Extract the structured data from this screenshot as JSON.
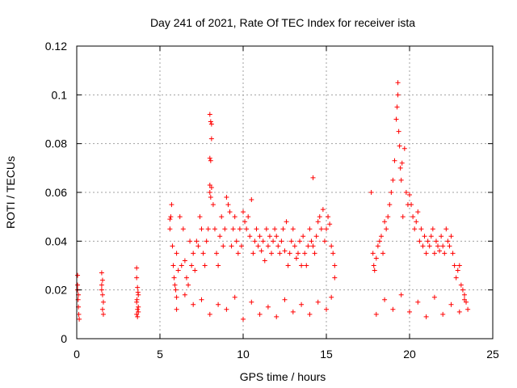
{
  "chart_data": {
    "type": "scatter",
    "title": "Day 241 of 2021, Rate Of TEC Index for receiver ista",
    "xlabel": "GPS time / hours",
    "ylabel": "ROTI / TECUs",
    "xlim": [
      0,
      25
    ],
    "ylim": [
      0,
      0.12
    ],
    "xticks": [
      0,
      5,
      10,
      15,
      20,
      25
    ],
    "xtick_labels": [
      "0",
      "5",
      "10",
      "15",
      "20",
      "25"
    ],
    "yticks": [
      0,
      0.02,
      0.04,
      0.06,
      0.08,
      0.1,
      0.12
    ],
    "ytick_labels": [
      "0",
      "0.02",
      "0.04",
      "0.06",
      "0.08",
      "0.1",
      "0.12"
    ],
    "grid": true,
    "marker": "+",
    "color": "#ff0000",
    "series": [
      {
        "name": "ROTI",
        "x": [
          0.05,
          0.05,
          0.08,
          0.1,
          0.12,
          0.15,
          0.1,
          0.05,
          1.5,
          1.5,
          1.55,
          1.6,
          1.55,
          1.6,
          1.5,
          1.55,
          3.6,
          3.6,
          3.65,
          3.7,
          3.6,
          3.65,
          3.7,
          3.6,
          3.65,
          3.7,
          3.62,
          3.68,
          5.6,
          5.6,
          5.65,
          5.7,
          5.75,
          5.8,
          5.85,
          5.9,
          5.95,
          6.0,
          6.0,
          6.1,
          6.2,
          6.3,
          6.4,
          6.5,
          6.6,
          6.7,
          6.8,
          6.9,
          7.0,
          7.1,
          7.2,
          7.3,
          7.4,
          7.5,
          7.6,
          7.7,
          7.8,
          7.9,
          8.0,
          8.0,
          8.05,
          8.1,
          8.1,
          8.05,
          8.0,
          8.1,
          8.0,
          8.05,
          8.2,
          8.3,
          8.4,
          8.5,
          8.6,
          8.7,
          8.8,
          8.9,
          9.0,
          9.1,
          9.2,
          9.3,
          9.4,
          9.5,
          9.6,
          9.7,
          9.8,
          9.9,
          10.0,
          10.1,
          10.2,
          10.3,
          10.4,
          10.5,
          10.6,
          10.7,
          10.8,
          10.9,
          11.0,
          11.1,
          11.2,
          11.3,
          11.4,
          11.5,
          11.6,
          11.7,
          11.8,
          11.9,
          12.0,
          12.1,
          12.2,
          12.3,
          12.4,
          12.5,
          12.6,
          12.7,
          12.8,
          12.9,
          13.0,
          13.1,
          13.2,
          13.3,
          13.4,
          13.5,
          13.6,
          13.7,
          13.8,
          13.9,
          14.0,
          14.1,
          14.2,
          14.2,
          14.3,
          14.4,
          14.5,
          14.6,
          14.7,
          14.8,
          14.9,
          15.0,
          15.1,
          15.2,
          15.3,
          15.4,
          15.5,
          15.5,
          17.7,
          17.8,
          17.85,
          17.9,
          18.0,
          18.1,
          18.2,
          18.3,
          18.4,
          18.5,
          18.6,
          18.7,
          18.8,
          18.9,
          19.0,
          19.1,
          19.2,
          19.25,
          19.3,
          19.3,
          19.35,
          19.4,
          19.45,
          19.5,
          19.55,
          19.6,
          19.7,
          19.8,
          19.9,
          20.0,
          20.1,
          20.2,
          20.3,
          20.4,
          20.5,
          20.6,
          20.7,
          20.8,
          20.9,
          21.0,
          21.1,
          21.2,
          21.3,
          21.4,
          21.5,
          21.6,
          21.7,
          21.8,
          21.9,
          22.0,
          22.1,
          22.2,
          22.3,
          22.4,
          22.5,
          22.6,
          22.7,
          22.8,
          22.9,
          23.0,
          23.1,
          23.2,
          23.3,
          23.4,
          23.5,
          6.0,
          7.0,
          8.0,
          9.0,
          10.0,
          11.0,
          12.0,
          13.0,
          14.0,
          15.0,
          18.0,
          19.0,
          20.0,
          21.0,
          22.0,
          23.0,
          6.5,
          7.5,
          8.5,
          9.5,
          10.5,
          11.5,
          12.5,
          13.5,
          14.5,
          15.3,
          18.5,
          19.5,
          20.5,
          21.5,
          22.5,
          23.3
        ],
        "y": [
          0.026,
          0.02,
          0.016,
          0.013,
          0.01,
          0.008,
          0.018,
          0.022,
          0.027,
          0.022,
          0.018,
          0.015,
          0.012,
          0.01,
          0.02,
          0.024,
          0.029,
          0.025,
          0.021,
          0.018,
          0.015,
          0.012,
          0.011,
          0.01,
          0.009,
          0.013,
          0.016,
          0.019,
          0.049,
          0.045,
          0.05,
          0.055,
          0.038,
          0.03,
          0.025,
          0.022,
          0.02,
          0.017,
          0.035,
          0.028,
          0.05,
          0.03,
          0.045,
          0.032,
          0.025,
          0.022,
          0.04,
          0.03,
          0.035,
          0.028,
          0.04,
          0.038,
          0.05,
          0.045,
          0.035,
          0.03,
          0.04,
          0.045,
          0.06,
          0.074,
          0.073,
          0.082,
          0.088,
          0.089,
          0.092,
          0.062,
          0.063,
          0.058,
          0.055,
          0.045,
          0.035,
          0.03,
          0.042,
          0.05,
          0.038,
          0.045,
          0.058,
          0.055,
          0.052,
          0.038,
          0.045,
          0.05,
          0.04,
          0.035,
          0.045,
          0.038,
          0.052,
          0.048,
          0.045,
          0.05,
          0.042,
          0.057,
          0.035,
          0.04,
          0.045,
          0.038,
          0.042,
          0.036,
          0.04,
          0.032,
          0.045,
          0.038,
          0.042,
          0.035,
          0.04,
          0.045,
          0.042,
          0.038,
          0.035,
          0.04,
          0.045,
          0.036,
          0.048,
          0.03,
          0.035,
          0.04,
          0.045,
          0.038,
          0.033,
          0.035,
          0.04,
          0.03,
          0.042,
          0.035,
          0.03,
          0.038,
          0.045,
          0.04,
          0.066,
          0.038,
          0.035,
          0.042,
          0.048,
          0.05,
          0.045,
          0.053,
          0.04,
          0.045,
          0.05,
          0.047,
          0.038,
          0.035,
          0.03,
          0.025,
          0.06,
          0.035,
          0.03,
          0.028,
          0.033,
          0.038,
          0.04,
          0.042,
          0.035,
          0.048,
          0.045,
          0.05,
          0.055,
          0.06,
          0.065,
          0.073,
          0.09,
          0.095,
          0.105,
          0.1,
          0.085,
          0.079,
          0.07,
          0.065,
          0.072,
          0.05,
          0.078,
          0.06,
          0.055,
          0.059,
          0.055,
          0.05,
          0.045,
          0.048,
          0.052,
          0.04,
          0.045,
          0.038,
          0.042,
          0.035,
          0.04,
          0.038,
          0.042,
          0.045,
          0.035,
          0.04,
          0.038,
          0.036,
          0.042,
          0.038,
          0.035,
          0.045,
          0.04,
          0.038,
          0.042,
          0.035,
          0.03,
          0.025,
          0.028,
          0.03,
          0.022,
          0.02,
          0.018,
          0.015,
          0.012,
          0.012,
          0.014,
          0.01,
          0.012,
          0.008,
          0.01,
          0.009,
          0.011,
          0.01,
          0.012,
          0.01,
          0.012,
          0.011,
          0.009,
          0.01,
          0.011,
          0.018,
          0.016,
          0.014,
          0.017,
          0.015,
          0.013,
          0.016,
          0.014,
          0.015,
          0.017,
          0.016,
          0.018,
          0.015,
          0.017,
          0.014,
          0.016
        ]
      }
    ]
  }
}
